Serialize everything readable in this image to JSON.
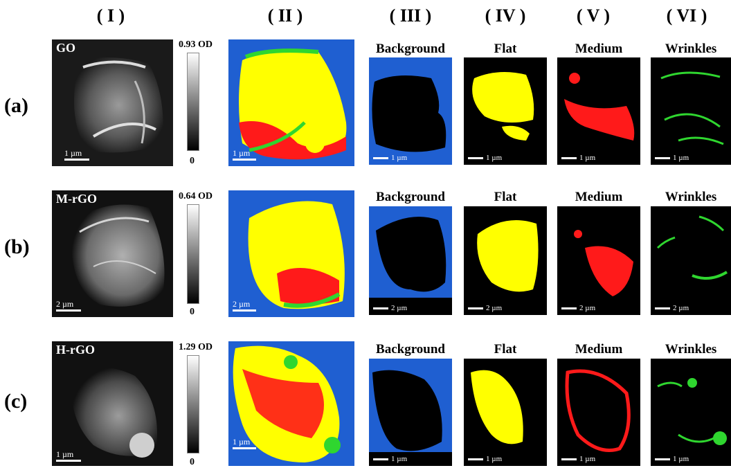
{
  "columns": [
    "( I )",
    "( II )",
    "( III )",
    "( IV )",
    "( V )",
    "( VI )"
  ],
  "rows": [
    {
      "label": "(a)",
      "sample": "GO",
      "od_max": "0.93 OD",
      "od_min": "0",
      "scale": "1 µm"
    },
    {
      "label": "(b)",
      "sample": "M-rGO",
      "od_max": "0.64 OD",
      "od_min": "0",
      "scale": "2 µm"
    },
    {
      "label": "(c)",
      "sample": "H-rGO",
      "od_max": "1.29 OD",
      "od_min": "0",
      "scale": "1 µm"
    }
  ],
  "component_titles": [
    "Background",
    "Flat",
    "Medium",
    "Wrinkles"
  ],
  "colors": {
    "background": "#1f5fd1",
    "flat": "#ffff00",
    "medium": "#ff1a1a",
    "wrinkles": "#2fd62f"
  }
}
